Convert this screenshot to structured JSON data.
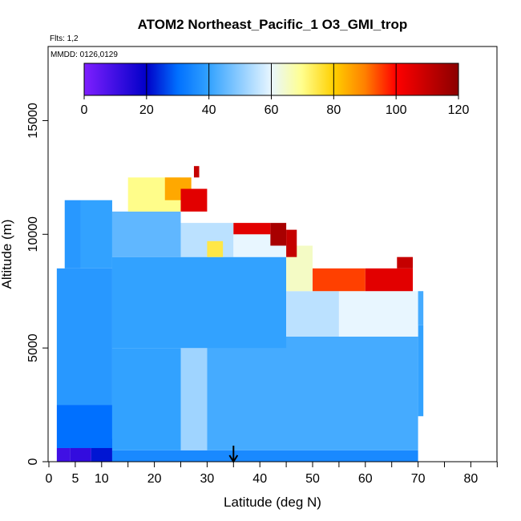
{
  "chart_data": {
    "type": "heatmap",
    "title": "ATOM2 Northeast_Pacific_1 O3_GMI_trop",
    "annotations": {
      "flights": "Flts: 1,2",
      "dates": "MMDD: 0126,0129"
    },
    "xlabel": "Latitude (deg N)",
    "ylabel": "Altitude (m)",
    "xlim": [
      0,
      85
    ],
    "ylim": [
      0,
      17500
    ],
    "x_ticks": [
      0,
      5,
      10,
      20,
      30,
      40,
      50,
      60,
      70,
      80
    ],
    "x_minor_ticks": [
      15,
      25,
      35,
      45,
      55,
      65,
      75,
      85
    ],
    "y_ticks": [
      0,
      5000,
      10000,
      15000
    ],
    "colorbar": {
      "min": 0,
      "max": 120,
      "ticks": [
        0,
        20,
        40,
        60,
        80,
        100,
        120
      ],
      "colors": [
        "#7f1fff",
        "#0000c8",
        "#0070ff",
        "#32a2ff",
        "#e8f6ff",
        "#ffff90",
        "#ffd000",
        "#ff8000",
        "#ff0000",
        "#8b0000"
      ]
    },
    "marker_latitude": 35,
    "grid": false,
    "cells": [
      {
        "lat": [
          1.5,
          4
        ],
        "alt": [
          0,
          600
        ],
        "value": 10
      },
      {
        "lat": [
          4,
          8
        ],
        "alt": [
          0,
          1500
        ],
        "value": 12
      },
      {
        "lat": [
          8,
          12
        ],
        "alt": [
          0,
          1000
        ],
        "value": 22
      },
      {
        "lat": [
          12,
          70
        ],
        "alt": [
          0,
          500
        ],
        "value": 35
      },
      {
        "lat": [
          1.5,
          12
        ],
        "alt": [
          600,
          2500
        ],
        "value": 30
      },
      {
        "lat": [
          12,
          25
        ],
        "alt": [
          500,
          5000
        ],
        "value": 40
      },
      {
        "lat": [
          25,
          30
        ],
        "alt": [
          500,
          6000
        ],
        "value": 52
      },
      {
        "lat": [
          30,
          70
        ],
        "alt": [
          500,
          5500
        ],
        "value": 42
      },
      {
        "lat": [
          70,
          71
        ],
        "alt": [
          2000,
          6000
        ],
        "value": 40
      },
      {
        "lat": [
          1.5,
          12
        ],
        "alt": [
          2500,
          8500
        ],
        "value": 38
      },
      {
        "lat": [
          12,
          45
        ],
        "alt": [
          5000,
          9000
        ],
        "value": 40
      },
      {
        "lat": [
          45,
          55
        ],
        "alt": [
          5500,
          7500
        ],
        "value": 55
      },
      {
        "lat": [
          55,
          70
        ],
        "alt": [
          5500,
          7500
        ],
        "value": 60
      },
      {
        "lat": [
          70,
          71
        ],
        "alt": [
          6000,
          7500
        ],
        "value": 42
      },
      {
        "lat": [
          45,
          50
        ],
        "alt": [
          7500,
          9500
        ],
        "value": 65
      },
      {
        "lat": [
          50,
          60
        ],
        "alt": [
          7500,
          8500
        ],
        "value": 95
      },
      {
        "lat": [
          60,
          69
        ],
        "alt": [
          7500,
          8500
        ],
        "value": 105
      },
      {
        "lat": [
          66,
          69
        ],
        "alt": [
          8500,
          9000
        ],
        "value": 110
      },
      {
        "lat": [
          3,
          6
        ],
        "alt": [
          8500,
          11500
        ],
        "value": 38
      },
      {
        "lat": [
          6,
          12
        ],
        "alt": [
          8500,
          11500
        ],
        "value": 40
      },
      {
        "lat": [
          12,
          25
        ],
        "alt": [
          9000,
          11000
        ],
        "value": 45
      },
      {
        "lat": [
          25,
          35
        ],
        "alt": [
          9000,
          10500
        ],
        "value": 55
      },
      {
        "lat": [
          30,
          33
        ],
        "alt": [
          9000,
          9700
        ],
        "value": 75
      },
      {
        "lat": [
          35,
          45
        ],
        "alt": [
          9000,
          10000
        ],
        "value": 60
      },
      {
        "lat": [
          45,
          47
        ],
        "alt": [
          9000,
          10200
        ],
        "value": 110
      },
      {
        "lat": [
          15,
          25
        ],
        "alt": [
          11000,
          12500
        ],
        "value": 70
      },
      {
        "lat": [
          22,
          27
        ],
        "alt": [
          11500,
          12500
        ],
        "value": 85
      },
      {
        "lat": [
          25,
          30
        ],
        "alt": [
          11000,
          12000
        ],
        "value": 105
      },
      {
        "lat": [
          35,
          42
        ],
        "alt": [
          10000,
          10500
        ],
        "value": 105
      },
      {
        "lat": [
          42,
          45
        ],
        "alt": [
          9500,
          10500
        ],
        "value": 115
      },
      {
        "lat": [
          27.5,
          28.5
        ],
        "alt": [
          12500,
          13000
        ],
        "value": 110
      }
    ]
  }
}
